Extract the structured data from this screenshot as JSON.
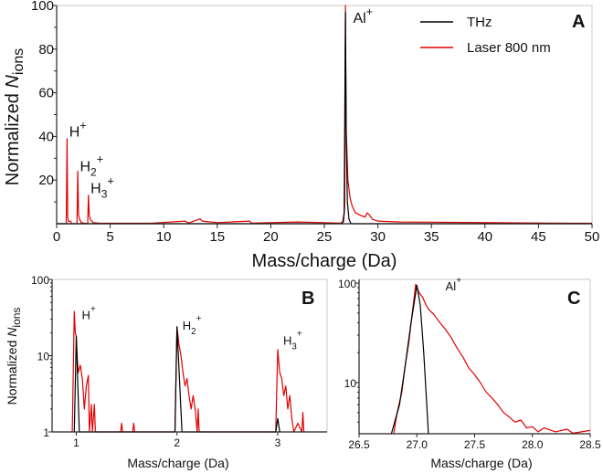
{
  "colors": {
    "thz": "#000000",
    "laser": "#e00000",
    "axis": "#222222"
  },
  "chart_data": [
    {
      "panel": "A",
      "type": "line",
      "xlabel": "Mass/charge (Da)",
      "ylabel": {
        "text": "Normalized ",
        "var": "N",
        "sub": "ions"
      },
      "xlim": [
        0,
        50
      ],
      "ylim": [
        0,
        100
      ],
      "yscale": "linear",
      "xticks": [
        0,
        5,
        10,
        15,
        20,
        25,
        30,
        35,
        40,
        45,
        50
      ],
      "yticks": [
        20,
        40,
        60,
        80,
        100
      ],
      "legend": {
        "placement": "top-right",
        "entries": [
          "THz",
          "Laser 800 nm"
        ]
      },
      "annotations": [
        {
          "base": "H",
          "sub": "",
          "sup": "+",
          "x": 1,
          "y": 40
        },
        {
          "base": "H",
          "sub": "2",
          "sup": "+",
          "x": 2,
          "y": 24
        },
        {
          "base": "H",
          "sub": "3",
          "sup": "+",
          "x": 3,
          "y": 14
        },
        {
          "base": "Al",
          "sub": "",
          "sup": "+",
          "x": 27,
          "y": 92
        }
      ],
      "series": [
        {
          "name": "Laser 800 nm",
          "color": "#e00000",
          "points": [
            [
              0,
              0
            ],
            [
              0.9,
              0
            ],
            [
              0.97,
              39
            ],
            [
              1.03,
              3
            ],
            [
              1.1,
              1
            ],
            [
              1.3,
              1.2
            ],
            [
              1.4,
              0
            ],
            [
              1.9,
              0
            ],
            [
              1.97,
              24
            ],
            [
              2.05,
              4
            ],
            [
              2.15,
              2
            ],
            [
              2.3,
              0.5
            ],
            [
              2.9,
              0
            ],
            [
              2.97,
              13
            ],
            [
              3.05,
              4
            ],
            [
              3.15,
              2
            ],
            [
              3.4,
              0.5
            ],
            [
              4,
              0.2
            ],
            [
              9,
              0.3
            ],
            [
              12,
              1.2
            ],
            [
              12.3,
              0.3
            ],
            [
              13.4,
              2.2
            ],
            [
              13.6,
              1.2
            ],
            [
              14,
              1
            ],
            [
              15,
              0.5
            ],
            [
              18,
              1.2
            ],
            [
              18.2,
              0.3
            ],
            [
              22.5,
              0.8
            ],
            [
              26.5,
              0.3
            ],
            [
              26.8,
              1
            ],
            [
              26.9,
              8
            ],
            [
              26.97,
              100
            ],
            [
              27.02,
              45
            ],
            [
              27.1,
              35
            ],
            [
              27.2,
              20
            ],
            [
              27.4,
              12
            ],
            [
              27.6,
              8
            ],
            [
              27.9,
              5
            ],
            [
              28.3,
              4
            ],
            [
              28.8,
              3
            ],
            [
              29,
              5
            ],
            [
              29.2,
              4
            ],
            [
              29.5,
              2
            ],
            [
              30,
              1.2
            ],
            [
              32,
              0.8
            ],
            [
              35,
              0.7
            ],
            [
              38,
              0.6
            ],
            [
              42,
              0.4
            ],
            [
              46,
              0.3
            ],
            [
              50,
              0.2
            ]
          ]
        },
        {
          "name": "THz",
          "color": "#000000",
          "points": [
            [
              0,
              0
            ],
            [
              26.7,
              0
            ],
            [
              26.85,
              5
            ],
            [
              26.97,
              97
            ],
            [
              27.05,
              40
            ],
            [
              27.15,
              10
            ],
            [
              27.3,
              2
            ],
            [
              27.5,
              0
            ],
            [
              50,
              0
            ]
          ]
        }
      ]
    },
    {
      "panel": "B",
      "type": "line",
      "xlabel": "Mass/charge (Da)",
      "ylabel": {
        "text": "Normalized ",
        "var": "N",
        "sub": "ions"
      },
      "xlim": [
        0.76,
        3.49
      ],
      "ylim": [
        1,
        100
      ],
      "yscale": "log",
      "xticks": [
        1,
        2,
        3
      ],
      "yticks": [
        1,
        10,
        100
      ],
      "annotations": [
        {
          "base": "H",
          "sub": "",
          "sup": "+",
          "x": 1.0,
          "y": 30
        },
        {
          "base": "H",
          "sub": "2",
          "sup": "+",
          "x": 2.0,
          "y": 22
        },
        {
          "base": "H",
          "sub": "3",
          "sup": "+",
          "x": 3.0,
          "y": 14
        }
      ],
      "series": [
        {
          "name": "Laser 800 nm",
          "color": "#e00000",
          "points": [
            [
              0.96,
              1
            ],
            [
              0.98,
              38
            ],
            [
              0.99,
              20
            ],
            [
              1.0,
              18
            ],
            [
              1.01,
              9
            ],
            [
              1.02,
              6
            ],
            [
              1.04,
              7.5
            ],
            [
              1.06,
              5
            ],
            [
              1.08,
              2
            ],
            [
              1.1,
              4
            ],
            [
              1.12,
              5.5
            ],
            [
              1.13,
              1
            ],
            [
              1.15,
              2.3
            ],
            [
              1.16,
              1
            ],
            [
              1.18,
              2.3
            ],
            [
              1.19,
              1
            ],
            [
              1.44,
              1
            ],
            [
              1.45,
              1.3
            ],
            [
              1.46,
              1
            ],
            [
              1.56,
              1
            ],
            [
              1.57,
              1.3
            ],
            [
              1.58,
              1
            ],
            [
              1.98,
              1
            ],
            [
              2.0,
              24
            ],
            [
              2.02,
              14
            ],
            [
              2.04,
              10
            ],
            [
              2.06,
              6
            ],
            [
              2.08,
              4
            ],
            [
              2.1,
              5
            ],
            [
              2.12,
              3
            ],
            [
              2.14,
              2
            ],
            [
              2.16,
              3
            ],
            [
              2.18,
              2
            ],
            [
              2.2,
              1
            ],
            [
              2.21,
              2
            ],
            [
              2.22,
              1
            ],
            [
              2.98,
              1
            ],
            [
              3.0,
              12
            ],
            [
              3.02,
              6
            ],
            [
              3.04,
              5
            ],
            [
              3.06,
              3
            ],
            [
              3.08,
              4
            ],
            [
              3.1,
              2
            ],
            [
              3.12,
              3
            ],
            [
              3.14,
              1.5
            ],
            [
              3.16,
              1
            ],
            [
              3.2,
              1.3
            ],
            [
              3.24,
              1
            ],
            [
              3.25,
              1.8
            ],
            [
              3.26,
              1
            ]
          ]
        },
        {
          "name": "THz",
          "color": "#000000",
          "points": [
            [
              0.98,
              1
            ],
            [
              1.0,
              18
            ],
            [
              1.03,
              1
            ],
            [
              1.98,
              1
            ],
            [
              2.0,
              24
            ],
            [
              2.05,
              1
            ],
            [
              2.98,
              1
            ],
            [
              3.0,
              1.5
            ],
            [
              3.02,
              1
            ]
          ]
        }
      ]
    },
    {
      "panel": "C",
      "type": "line",
      "xlabel": "Mass/charge (Da)",
      "xlim": [
        26.5,
        28.5
      ],
      "ylim": [
        3.06,
        109
      ],
      "yscale": "log",
      "xticks": [
        26.5,
        27.0,
        27.5,
        28.0,
        28.5
      ],
      "xtick_labels": [
        "26.5",
        "27.0",
        "27.5",
        "28.0",
        "28.5"
      ],
      "yticks": [
        10,
        100
      ],
      "annotations": [
        {
          "base": "Al",
          "sub": "",
          "sup": "+",
          "x": 27.2,
          "y": 85
        }
      ],
      "series": [
        {
          "name": "Laser 800 nm",
          "color": "#e00000",
          "points": [
            [
              26.8,
              3.1
            ],
            [
              26.83,
              5
            ],
            [
              26.87,
              8
            ],
            [
              26.9,
              15
            ],
            [
              26.93,
              25
            ],
            [
              26.96,
              50
            ],
            [
              26.99,
              97
            ],
            [
              27.02,
              80
            ],
            [
              27.05,
              72
            ],
            [
              27.08,
              60
            ],
            [
              27.1,
              55
            ],
            [
              27.15,
              48
            ],
            [
              27.2,
              40
            ],
            [
              27.25,
              34
            ],
            [
              27.3,
              28
            ],
            [
              27.35,
              22
            ],
            [
              27.4,
              18
            ],
            [
              27.45,
              14
            ],
            [
              27.5,
              12
            ],
            [
              27.55,
              10
            ],
            [
              27.6,
              8
            ],
            [
              27.65,
              7
            ],
            [
              27.7,
              6
            ],
            [
              27.75,
              5
            ],
            [
              27.8,
              4.5
            ],
            [
              27.85,
              4
            ],
            [
              27.9,
              4.2
            ],
            [
              27.95,
              3.5
            ],
            [
              28.0,
              3.6
            ],
            [
              28.05,
              3.2
            ],
            [
              28.1,
              3.5
            ],
            [
              28.2,
              3.2
            ],
            [
              28.3,
              3.4
            ],
            [
              28.35,
              3.1
            ],
            [
              28.5,
              3.3
            ]
          ]
        },
        {
          "name": "THz",
          "color": "#000000",
          "points": [
            [
              26.78,
              3.06
            ],
            [
              26.85,
              6
            ],
            [
              26.9,
              15
            ],
            [
              26.95,
              40
            ],
            [
              27.0,
              95
            ],
            [
              27.03,
              60
            ],
            [
              27.06,
              20
            ],
            [
              27.09,
              5
            ],
            [
              27.1,
              3.06
            ]
          ]
        }
      ]
    }
  ]
}
